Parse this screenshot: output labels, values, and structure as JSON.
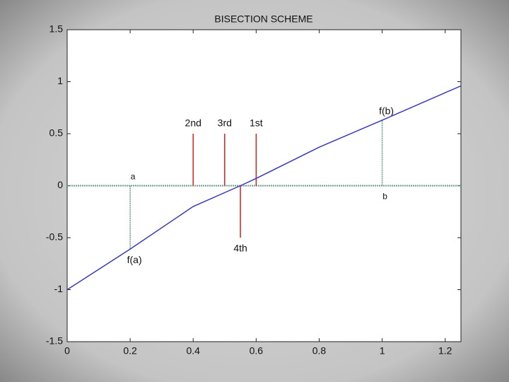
{
  "chart_data": {
    "type": "line",
    "title": "BISECTION SCHEME",
    "x": [
      0,
      0.2,
      0.4,
      0.55,
      0.6,
      0.8,
      1.0,
      1.25
    ],
    "series": [
      {
        "color": "#3a3ab8",
        "values": [
          -1,
          -0.61,
          -0.2,
          0,
          0.07,
          0.37,
          0.63,
          0.96
        ]
      }
    ],
    "xlim": [
      0,
      1.25
    ],
    "ylim": [
      -1.5,
      1.5
    ],
    "xticks": [
      0,
      0.2,
      0.4,
      0.6,
      0.8,
      1,
      1.2
    ],
    "yticks": [
      -1.5,
      -1,
      -0.5,
      0,
      0.5,
      1,
      1.5
    ],
    "iterations": [
      {
        "label": "1st",
        "x": 0.6,
        "height": 0.5
      },
      {
        "label": "2nd",
        "x": 0.4,
        "height": 0.5
      },
      {
        "label": "3rd",
        "x": 0.5,
        "height": 0.5
      },
      {
        "label": "4th",
        "x": 0.55,
        "height": -0.5
      }
    ],
    "iteration_color": "#d82020",
    "endpoints": [
      {
        "label": "a",
        "value_label": "f(a)",
        "x": 0.2,
        "y": -0.61
      },
      {
        "label": "b",
        "value_label": "f(b)",
        "x": 1,
        "y": 0.63
      }
    ],
    "endpoint_color": "#6a9a8a"
  }
}
